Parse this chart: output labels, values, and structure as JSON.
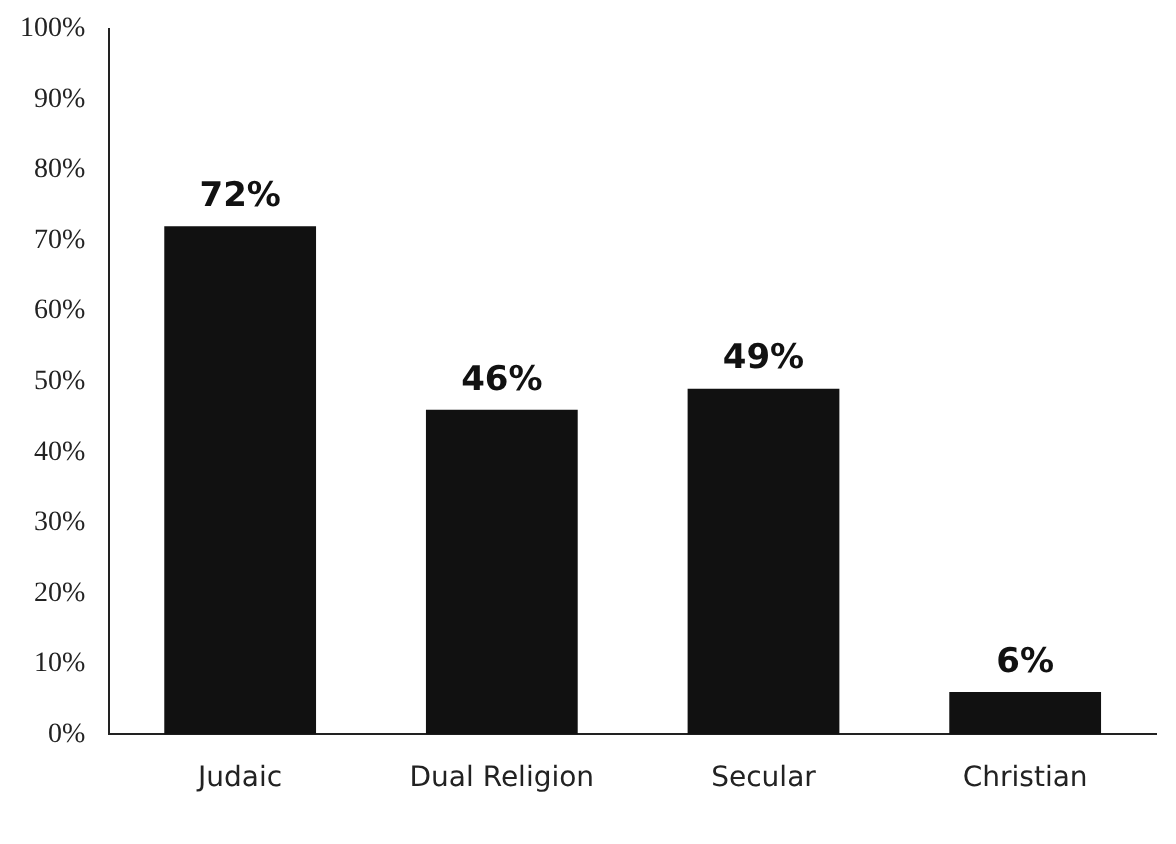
{
  "chart_data": {
    "type": "bar",
    "categories": [
      "Judaic",
      "Dual Religion",
      "Secular",
      "Christian"
    ],
    "values": [
      72,
      46,
      49,
      6
    ],
    "color": "#111111",
    "value_labels": [
      "72%",
      "46%",
      "49%",
      "6%"
    ],
    "ylim": [
      0,
      100
    ],
    "yticks": [
      {
        "value": 0,
        "label": "0%"
      },
      {
        "value": 10,
        "label": "10%"
      },
      {
        "value": 20,
        "label": "20%"
      },
      {
        "value": 30,
        "label": "30%"
      },
      {
        "value": 40,
        "label": "40%"
      },
      {
        "value": 50,
        "label": "50%"
      },
      {
        "value": 60,
        "label": "60%"
      },
      {
        "value": 70,
        "label": "70%"
      },
      {
        "value": 80,
        "label": "80%"
      },
      {
        "value": 90,
        "label": "90%"
      },
      {
        "value": 100,
        "label": "100%"
      }
    ],
    "grid": false,
    "legend": false
  }
}
